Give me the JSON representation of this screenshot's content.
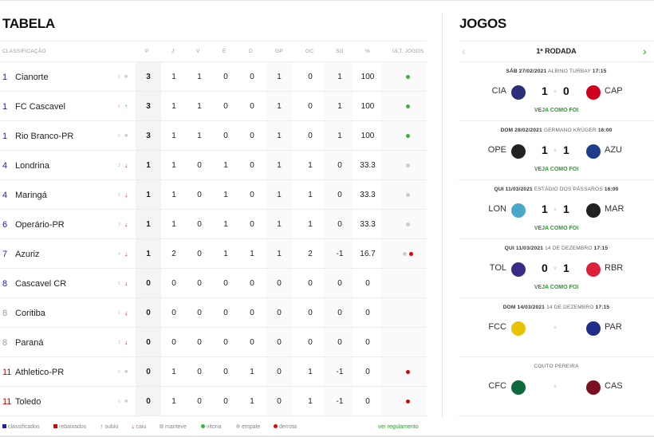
{
  "tabela": {
    "title": "TABELA",
    "headers": {
      "classificacao": "CLASSIFICAÇÃO",
      "p": "P",
      "j": "J",
      "v": "V",
      "e": "E",
      "d": "D",
      "gp": "GP",
      "gc": "GC",
      "sg": "SG",
      "pct": "%",
      "ult": "ÚLT. JOGOS"
    },
    "rows": [
      {
        "pos": "1",
        "team": "Cianorte",
        "var": "0",
        "trend": "same",
        "p": "3",
        "j": "1",
        "v": "1",
        "e": "0",
        "d": "0",
        "gp": "1",
        "gc": "0",
        "sg": "1",
        "pct": "100",
        "last": [
          "v"
        ],
        "pos_color": "blue"
      },
      {
        "pos": "1",
        "team": "FC Cascavel",
        "var": "6",
        "trend": "up",
        "p": "3",
        "j": "1",
        "v": "1",
        "e": "0",
        "d": "0",
        "gp": "1",
        "gc": "0",
        "sg": "1",
        "pct": "100",
        "last": [
          "v"
        ],
        "pos_color": "blue"
      },
      {
        "pos": "1",
        "team": "Rio Branco-PR",
        "var": "0",
        "trend": "same",
        "p": "3",
        "j": "1",
        "v": "1",
        "e": "0",
        "d": "0",
        "gp": "1",
        "gc": "0",
        "sg": "1",
        "pct": "100",
        "last": [
          "v"
        ],
        "pos_color": "blue"
      },
      {
        "pos": "4",
        "team": "Londrina",
        "var": "3",
        "trend": "down",
        "p": "1",
        "j": "1",
        "v": "0",
        "e": "1",
        "d": "0",
        "gp": "1",
        "gc": "1",
        "sg": "0",
        "pct": "33.3",
        "last": [
          "e"
        ],
        "pos_color": "blue"
      },
      {
        "pos": "4",
        "team": "Maringá",
        "var": "2",
        "trend": "down",
        "p": "1",
        "j": "1",
        "v": "0",
        "e": "1",
        "d": "0",
        "gp": "1",
        "gc": "1",
        "sg": "0",
        "pct": "33.3",
        "last": [
          "e"
        ],
        "pos_color": "blue"
      },
      {
        "pos": "6",
        "team": "Operário-PR",
        "var": "3",
        "trend": "down",
        "p": "1",
        "j": "1",
        "v": "0",
        "e": "1",
        "d": "0",
        "gp": "1",
        "gc": "1",
        "sg": "0",
        "pct": "33.3",
        "last": [
          "e"
        ],
        "pos_color": "blue"
      },
      {
        "pos": "7",
        "team": "Azuriz",
        "var": "4",
        "trend": "down",
        "p": "1",
        "j": "2",
        "v": "0",
        "e": "1",
        "d": "1",
        "gp": "1",
        "gc": "2",
        "sg": "-1",
        "pct": "16.7",
        "last": [
          "e",
          "d"
        ],
        "pos_color": "blue"
      },
      {
        "pos": "8",
        "team": "Cascavel CR",
        "var": "5",
        "trend": "down",
        "p": "0",
        "j": "0",
        "v": "0",
        "e": "0",
        "d": "0",
        "gp": "0",
        "gc": "0",
        "sg": "0",
        "pct": "0",
        "last": [],
        "pos_color": "blue"
      },
      {
        "pos": "8",
        "team": "Coritiba",
        "var": "1",
        "trend": "down",
        "p": "0",
        "j": "0",
        "v": "0",
        "e": "0",
        "d": "0",
        "gp": "0",
        "gc": "0",
        "sg": "0",
        "pct": "0",
        "last": [],
        "pos_color": "gray"
      },
      {
        "pos": "8",
        "team": "Paraná",
        "var": "1",
        "trend": "down",
        "p": "0",
        "j": "0",
        "v": "0",
        "e": "0",
        "d": "0",
        "gp": "0",
        "gc": "0",
        "sg": "0",
        "pct": "0",
        "last": [],
        "pos_color": "gray"
      },
      {
        "pos": "11",
        "team": "Athletico-PR",
        "var": "0",
        "trend": "same",
        "p": "0",
        "j": "1",
        "v": "0",
        "e": "0",
        "d": "1",
        "gp": "0",
        "gc": "1",
        "sg": "-1",
        "pct": "0",
        "last": [
          "d"
        ],
        "pos_color": "red"
      },
      {
        "pos": "11",
        "team": "Toledo",
        "var": "0",
        "trend": "same",
        "p": "0",
        "j": "1",
        "v": "0",
        "e": "0",
        "d": "1",
        "gp": "0",
        "gc": "1",
        "sg": "-1",
        "pct": "0",
        "last": [
          "d"
        ],
        "pos_color": "red"
      }
    ],
    "legend": {
      "classificados": "classificados",
      "rebaixados": "rebaixados",
      "subiu": "subiu",
      "caiu": "caiu",
      "manteve": "manteve",
      "vitoria": "vitoria",
      "empate": "empate",
      "derrota": "derrota",
      "regulamento": "ver regulamento"
    }
  },
  "jogos": {
    "title": "JOGOS",
    "rodada": "1ª RODADA",
    "games": [
      {
        "date": "SÁB 27/02/2021",
        "venue": "ALBINO TURBAY",
        "time": "17:15",
        "home": "CIA",
        "away": "CAP",
        "home_score": "1",
        "away_score": "0",
        "veja": "VEJA COMO FOI",
        "home_color": "#2a2f7a",
        "away_color": "#d0021b"
      },
      {
        "date": "DOM 28/02/2021",
        "venue": "GERMANO KRÜGER",
        "time": "16:00",
        "home": "OPE",
        "away": "AZU",
        "home_score": "1",
        "away_score": "1",
        "veja": "VEJA COMO FOI",
        "home_color": "#222222",
        "away_color": "#1f3b8c"
      },
      {
        "date": "QUI 11/03/2021",
        "venue": "ESTÁDIO DOS PÁSSAROS",
        "time": "16:00",
        "home": "LON",
        "away": "MAR",
        "home_score": "1",
        "away_score": "1",
        "veja": "VEJA COMO FOI",
        "home_color": "#4aa8c8",
        "away_color": "#222222"
      },
      {
        "date": "QUI 11/03/2021",
        "venue": "14 DE DEZEMBRO",
        "time": "17:15",
        "home": "TOL",
        "away": "RBR",
        "home_score": "0",
        "away_score": "1",
        "veja": "VEJA COMO FOI",
        "home_color": "#3b2a8a",
        "away_color": "#e0203a"
      },
      {
        "date": "DOM 14/03/2021",
        "venue": "14 DE DEZEMBRO",
        "time": "17:15",
        "home": "FCC",
        "away": "PAR",
        "home_score": "",
        "away_score": "",
        "veja": "",
        "home_color": "#e8c400",
        "away_color": "#1f2e8a"
      },
      {
        "date": "",
        "venue": "COUTO PEREIRA",
        "time": "",
        "home": "CFC",
        "away": "CAS",
        "home_score": "",
        "away_score": "",
        "veja": "",
        "home_color": "#0b6b3a",
        "away_color": "#7a1020"
      }
    ]
  },
  "colors": {
    "accent_green": "#2a9d2a",
    "classificados_blue": "#1a1ac8",
    "rebaixados_red": "#e00000"
  }
}
